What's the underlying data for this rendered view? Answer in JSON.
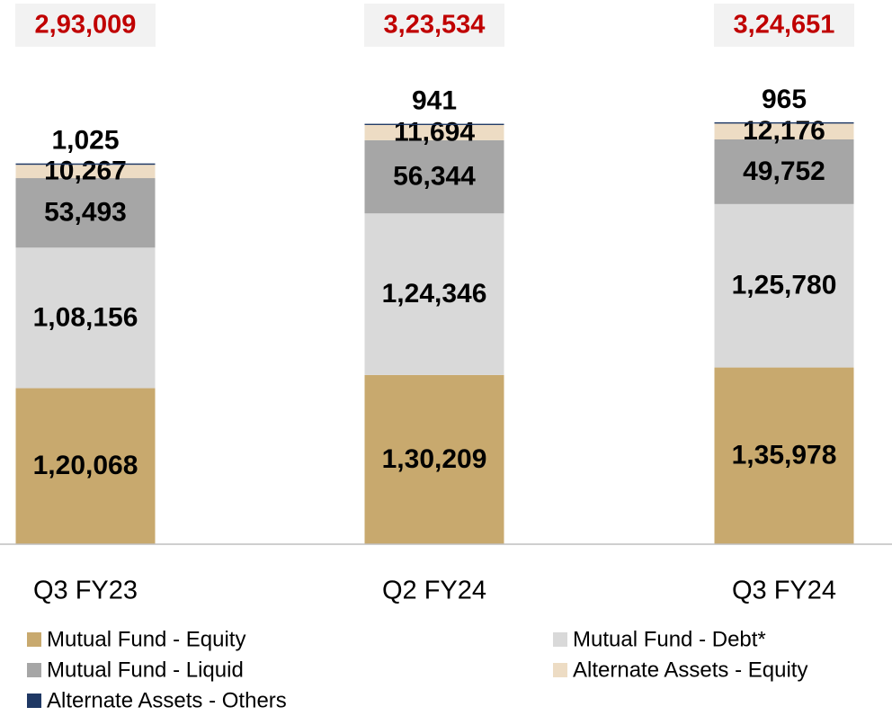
{
  "chart_data": {
    "type": "stacked_bar",
    "categories": [
      "Q3 FY23",
      "Q2 FY24",
      "Q3 FY24"
    ],
    "series": [
      {
        "name": "Mutual Fund - Equity",
        "color": "#c8a96e",
        "values": [
          120068,
          130209,
          135978
        ],
        "value_labels": [
          "1,20,068",
          "1,30,209",
          "1,35,978"
        ]
      },
      {
        "name": "Mutual Fund - Debt*",
        "color": "#d9d9d9",
        "values": [
          108156,
          124346,
          125780
        ],
        "value_labels": [
          "1,08,156",
          "1,24,346",
          "1,25,780"
        ]
      },
      {
        "name": "Mutual Fund - Liquid",
        "color": "#a6a6a6",
        "values": [
          53493,
          56344,
          49752
        ],
        "value_labels": [
          "53,493",
          "56,344",
          "49,752"
        ]
      },
      {
        "name": "Alternate Assets - Equity",
        "color": "#eddcc4",
        "values": [
          10267,
          11694,
          12176
        ],
        "value_labels": [
          "10,267",
          "11,694",
          "12,176"
        ]
      },
      {
        "name": "Alternate Assets - Others",
        "color": "#1f3864",
        "values": [
          1025,
          941,
          965
        ],
        "value_labels": [
          "1,025",
          "941",
          "965"
        ]
      }
    ],
    "totals": [
      293009,
      323534,
      324651
    ],
    "total_labels": [
      "2,93,009",
      "3,23,534",
      "3,24,651"
    ]
  }
}
